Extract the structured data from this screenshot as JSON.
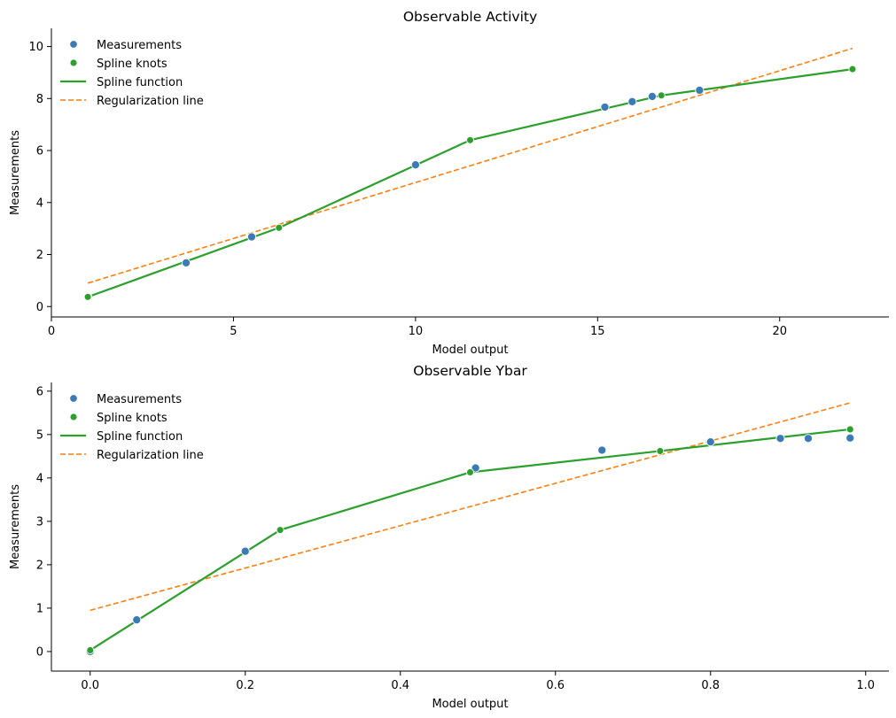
{
  "colors": {
    "measurements": "#3a7ab6",
    "spline": "#2ca02c",
    "regularization": "#ff7f0e",
    "axis": "#000000"
  },
  "chart_data": [
    {
      "type": "scatter",
      "title": "Observable Activity",
      "xlabel": "Model output",
      "ylabel": "Measurements",
      "xlim": [
        0,
        23
      ],
      "ylim": [
        -0.4,
        10.7
      ],
      "xticks": [
        0,
        5,
        10,
        15,
        20
      ],
      "yticks": [
        0,
        2,
        4,
        6,
        8,
        10
      ],
      "xtick_labels": [
        "0",
        "5",
        "10",
        "15",
        "20"
      ],
      "ytick_labels": [
        "0",
        "2",
        "4",
        "6",
        "8",
        "10"
      ],
      "legend_position": "top-left",
      "legend": [
        "Measurements",
        "Spline knots",
        "Spline function",
        "Regularization line"
      ],
      "measurements": {
        "name": "Measurements",
        "x": [
          1.0,
          3.7,
          5.5,
          10.0,
          15.2,
          15.95,
          16.5,
          17.8
        ],
        "y": [
          0.37,
          1.68,
          2.68,
          5.45,
          7.67,
          7.88,
          8.08,
          8.32
        ]
      },
      "spline_knots": {
        "name": "Spline knots",
        "x": [
          1.0,
          6.25,
          11.5,
          16.75,
          22.0
        ],
        "y": [
          0.37,
          3.03,
          6.4,
          8.12,
          9.13
        ]
      },
      "spline_function": {
        "name": "Spline function",
        "x": [
          1.0,
          6.25,
          11.5,
          16.75,
          22.0
        ],
        "y": [
          0.37,
          3.03,
          6.4,
          8.12,
          9.13
        ]
      },
      "regularization_line": {
        "name": "Regularization line",
        "x": [
          1.0,
          22.0
        ],
        "y": [
          0.9,
          9.93
        ]
      }
    },
    {
      "type": "scatter",
      "title": "Observable Ybar",
      "xlabel": "Model output",
      "ylabel": "Measurements",
      "xlim": [
        -0.05,
        1.03
      ],
      "ylim": [
        -0.45,
        6.2
      ],
      "xticks": [
        0.0,
        0.2,
        0.4,
        0.6,
        0.8,
        1.0
      ],
      "yticks": [
        0,
        1,
        2,
        3,
        4,
        5,
        6
      ],
      "xtick_labels": [
        "0.0",
        "0.2",
        "0.4",
        "0.6",
        "0.8",
        "1.0"
      ],
      "ytick_labels": [
        "0",
        "1",
        "2",
        "3",
        "4",
        "5",
        "6"
      ],
      "legend_position": "top-left",
      "legend": [
        "Measurements",
        "Spline knots",
        "Spline function",
        "Regularization line"
      ],
      "measurements": {
        "name": "Measurements",
        "x": [
          0.0,
          0.06,
          0.2,
          0.497,
          0.66,
          0.8,
          0.89,
          0.926,
          0.98
        ],
        "y": [
          0.0,
          0.73,
          2.31,
          4.23,
          4.64,
          4.83,
          4.91,
          4.91,
          4.92
        ]
      },
      "spline_knots": {
        "name": "Spline knots",
        "x": [
          0.0,
          0.245,
          0.49,
          0.735,
          0.98
        ],
        "y": [
          0.03,
          2.8,
          4.13,
          4.62,
          5.12
        ]
      },
      "spline_function": {
        "name": "Spline function",
        "x": [
          0.0,
          0.245,
          0.49,
          0.735,
          0.98
        ],
        "y": [
          0.03,
          2.8,
          4.13,
          4.62,
          5.12
        ]
      },
      "regularization_line": {
        "name": "Regularization line",
        "x": [
          0.0,
          0.98
        ],
        "y": [
          0.95,
          5.73
        ]
      }
    }
  ]
}
